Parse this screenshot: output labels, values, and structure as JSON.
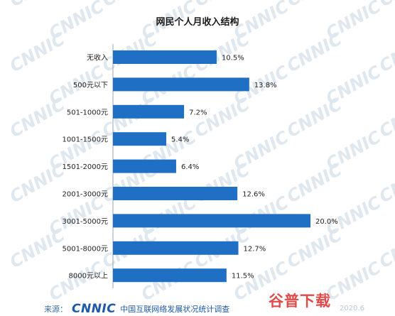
{
  "chart_data": {
    "type": "bar",
    "orientation": "horizontal",
    "title": "网民个人月收入结构",
    "categories": [
      "无收入",
      "500元以下",
      "501-1000元",
      "1001-1500元",
      "1501-2000元",
      "2001-3000元",
      "3001-5000元",
      "5001-8000元",
      "8000元以上"
    ],
    "values": [
      10.5,
      13.8,
      7.2,
      5.4,
      6.4,
      12.6,
      20.0,
      12.7,
      11.5
    ],
    "value_labels": [
      "10.5%",
      "13.8%",
      "7.2%",
      "5.4%",
      "6.4%",
      "12.6%",
      "20.0%",
      "12.7%",
      "11.5%"
    ],
    "xlim": [
      0,
      20
    ],
    "grid": false,
    "bar_color": "#1f6fc5"
  },
  "footer": {
    "source_label": "来源：",
    "brand": "CNNIC",
    "survey_name": "中国互联网络发展状况统计调查",
    "date": "2020.6"
  },
  "watermark": {
    "text": "CNNIC",
    "logo_text": "谷普下载"
  }
}
